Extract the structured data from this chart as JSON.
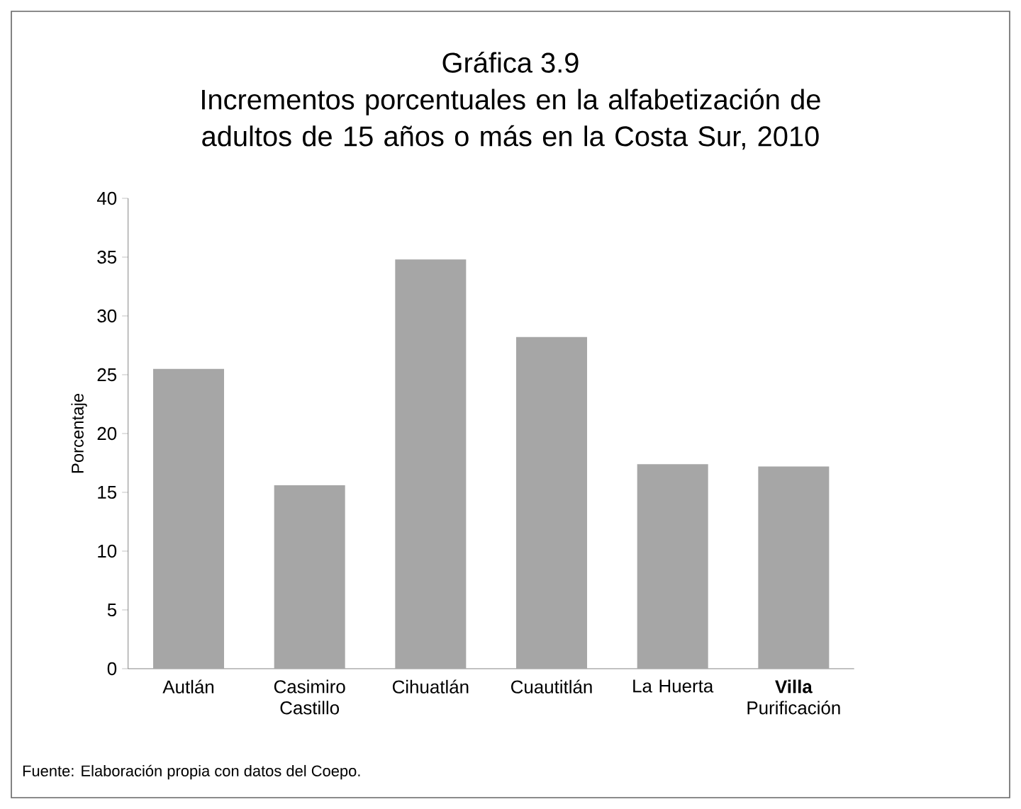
{
  "chart_data": {
    "type": "bar",
    "title": "Gráfica 3.9",
    "subtitle": "Incrementos porcentuales en la alfabetización de adultos de 15 años o más en la Costa Sur, 2010",
    "ylabel": "Porcentaje",
    "categories": [
      "Autlán",
      "Casimiro Castillo",
      "Cihuatlán",
      "Cuautitlán",
      "La Huerta",
      "**Villa** Purificación"
    ],
    "values": [
      25.5,
      15.6,
      34.8,
      28.2,
      17.4,
      17.2
    ],
    "color": "#a6a6a6",
    "ylim": [
      0,
      40
    ],
    "yticks": [
      0,
      5,
      10,
      15,
      20,
      25,
      30,
      35,
      40
    ],
    "annotations": [
      "Fuente: Elaboración propia con datos del Coepo."
    ]
  }
}
